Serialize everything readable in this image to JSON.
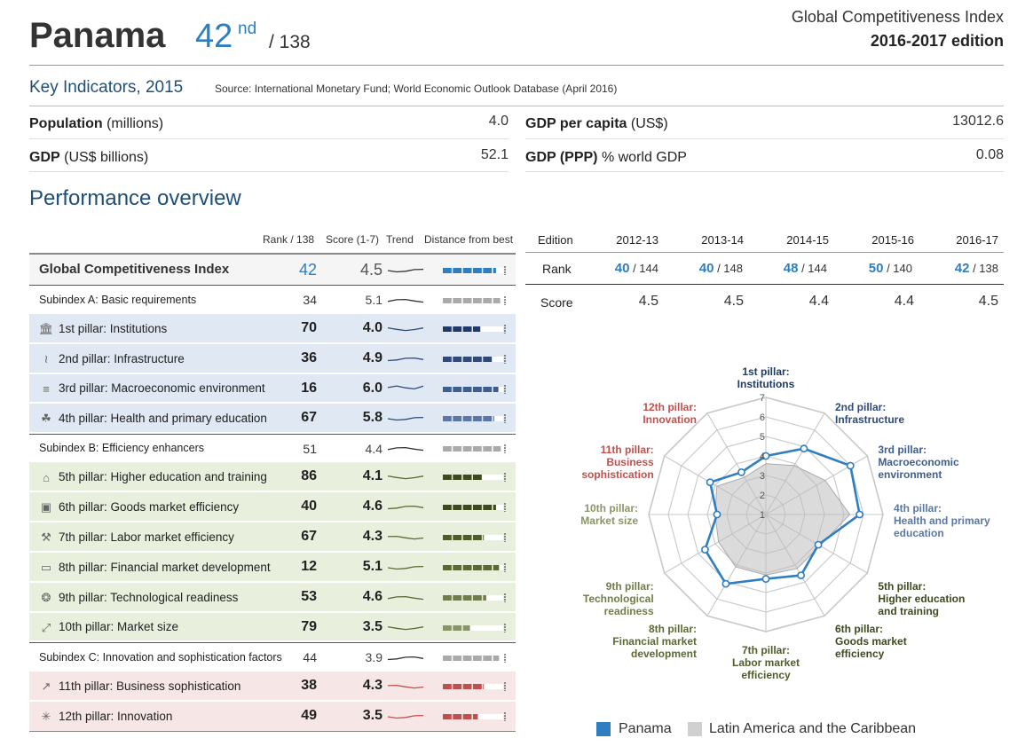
{
  "header": {
    "country": "Panama",
    "rank": "42",
    "rank_suffix": "nd",
    "rank_of": "/ 138",
    "index_title": "Global Competitiveness Index",
    "edition": "2016-2017 edition"
  },
  "key_indicators": {
    "title": "Key Indicators, 2015",
    "source": "Source: International Monetary Fund; World Economic Outlook Database (April 2016)",
    "items": [
      {
        "label_bold": "Population",
        "label_rest": " (millions)",
        "value": "4.0"
      },
      {
        "label_bold": "GDP",
        "label_rest": " (US$ billions)",
        "value": "52.1"
      },
      {
        "label_bold": "GDP per capita",
        "label_rest": " (US$)",
        "value": "13012.6"
      },
      {
        "label_bold": "GDP (PPP)",
        "label_rest": " % world GDP",
        "value": "0.08"
      }
    ]
  },
  "performance": {
    "title": "Performance overview",
    "col_headers": {
      "rank": "Rank / 138",
      "score": "Score (1-7)",
      "trend": "Trend",
      "distance": "Distance from best"
    },
    "rows": [
      {
        "label": "Global Competitiveness Index",
        "rank": "42",
        "score": "4.5",
        "kind": "gci",
        "distance": 0.88
      },
      {
        "label": "Subindex A: Basic requirements",
        "rank": "34",
        "score": "5.1",
        "kind": "sub",
        "distance": 0.95
      },
      {
        "label": "1st pillar: Institutions",
        "rank": "70",
        "score": "4.0",
        "kind": "p1",
        "icon": "institution-icon",
        "distance": 0.62
      },
      {
        "label": "2nd pillar: Infrastructure",
        "rank": "36",
        "score": "4.9",
        "kind": "p1",
        "icon": "bridge-icon",
        "distance": 0.82
      },
      {
        "label": "3rd pillar: Macroeconomic environment",
        "rank": "16",
        "score": "6.0",
        "kind": "p1",
        "icon": "coins-icon",
        "distance": 0.92
      },
      {
        "label": "4th pillar: Health and primary education",
        "rank": "67",
        "score": "5.8",
        "kind": "p1",
        "icon": "apple-icon",
        "distance": 0.85
      },
      {
        "label": "Subindex B: Efficiency enhancers",
        "rank": "51",
        "score": "4.4",
        "kind": "sub",
        "distance": 0.96
      },
      {
        "label": "5th pillar: Higher education and training",
        "rank": "86",
        "score": "4.1",
        "kind": "p2",
        "icon": "graduation-cap-icon",
        "distance": 0.65
      },
      {
        "label": "6th pillar: Goods market efficiency",
        "rank": "40",
        "score": "4.6",
        "kind": "p2",
        "icon": "box-icon",
        "distance": 0.88
      },
      {
        "label": "7th pillar: Labor market efficiency",
        "rank": "67",
        "score": "4.3",
        "kind": "p2",
        "icon": "tools-icon",
        "distance": 0.68
      },
      {
        "label": "8th pillar: Financial market development",
        "rank": "12",
        "score": "5.1",
        "kind": "p2",
        "icon": "wallet-icon",
        "distance": 0.93
      },
      {
        "label": "9th pillar: Technological readiness",
        "rank": "53",
        "score": "4.6",
        "kind": "p2",
        "icon": "network-icon",
        "distance": 0.72
      },
      {
        "label": "10th pillar: Market size",
        "rank": "79",
        "score": "3.5",
        "kind": "p2",
        "icon": "expand-icon",
        "distance": 0.45
      },
      {
        "label": "Subindex C: Innovation and sophistication factors",
        "rank": "44",
        "score": "3.9",
        "kind": "sub",
        "distance": 0.93
      },
      {
        "label": "11th pillar: Business sophistication",
        "rank": "38",
        "score": "4.3",
        "kind": "p3",
        "icon": "chart-up-icon",
        "distance": 0.68
      },
      {
        "label": "12th pillar: Innovation",
        "rank": "49",
        "score": "3.5",
        "kind": "p3",
        "icon": "spark-icon",
        "distance": 0.58
      }
    ]
  },
  "edition_table": {
    "header_label": "Edition",
    "editions": [
      "2012-13",
      "2013-14",
      "2014-15",
      "2015-16",
      "2016-17"
    ],
    "rank_label": "Rank",
    "ranks": [
      {
        "rank": "40",
        "of": " / 144"
      },
      {
        "rank": "40",
        "of": " / 148"
      },
      {
        "rank": "48",
        "of": " / 144"
      },
      {
        "rank": "50",
        "of": " / 140"
      },
      {
        "rank": "42",
        "of": " / 138"
      }
    ],
    "score_label": "Score",
    "scores": [
      "4.5",
      "4.5",
      "4.4",
      "4.4",
      "4.5"
    ]
  },
  "colors": {
    "accent": "#2e7ec1",
    "title_blue": "#1f4e79",
    "subindex_a": "#2e4a7a",
    "subindex_b": "#4a5a2a",
    "subindex_c": "#c0504d",
    "gray_area": "#d9d9d9"
  },
  "chart_data": {
    "type": "radar",
    "axes": [
      {
        "line1": "1st pillar:",
        "line2": "Institutions",
        "line3": ""
      },
      {
        "line1": "2nd pillar:",
        "line2": "Infrastructure",
        "line3": ""
      },
      {
        "line1": "3rd pillar:",
        "line2": "Macroeconomic",
        "line3": "environment"
      },
      {
        "line1": "4th pillar:",
        "line2": "Health and primary",
        "line3": "education"
      },
      {
        "line1": "5th pillar:",
        "line2": "Higher education",
        "line3": "and training"
      },
      {
        "line1": "6th pillar:",
        "line2": "Goods market",
        "line3": "efficiency"
      },
      {
        "line1": "7th pillar:",
        "line2": "Labor market",
        "line3": "efficiency"
      },
      {
        "line1": "8th pillar:",
        "line2": "Financial market",
        "line3": "development"
      },
      {
        "line1": "9th pillar:",
        "line2": "Technological",
        "line3": "readiness"
      },
      {
        "line1": "10th pillar:",
        "line2": "Market size",
        "line3": ""
      },
      {
        "line1": "11th pillar:",
        "line2": "Business",
        "line3": "sophistication"
      },
      {
        "line1": "12th pillar:",
        "line2": "Innovation",
        "line3": ""
      }
    ],
    "scale_ticks": [
      "1",
      "2",
      "3",
      "4",
      "5",
      "6",
      "7"
    ],
    "range": [
      1,
      7
    ],
    "series": [
      {
        "name": "Panama",
        "values": [
          4.0,
          4.9,
          6.0,
          5.8,
          4.1,
          4.6,
          4.3,
          5.1,
          4.6,
          3.5,
          4.3,
          3.5
        ]
      },
      {
        "name": "Latin America and the Caribbean",
        "values": [
          3.6,
          3.9,
          4.5,
          5.3,
          4.2,
          4.2,
          4.1,
          4.1,
          3.8,
          3.6,
          3.9,
          3.2
        ]
      }
    ]
  }
}
